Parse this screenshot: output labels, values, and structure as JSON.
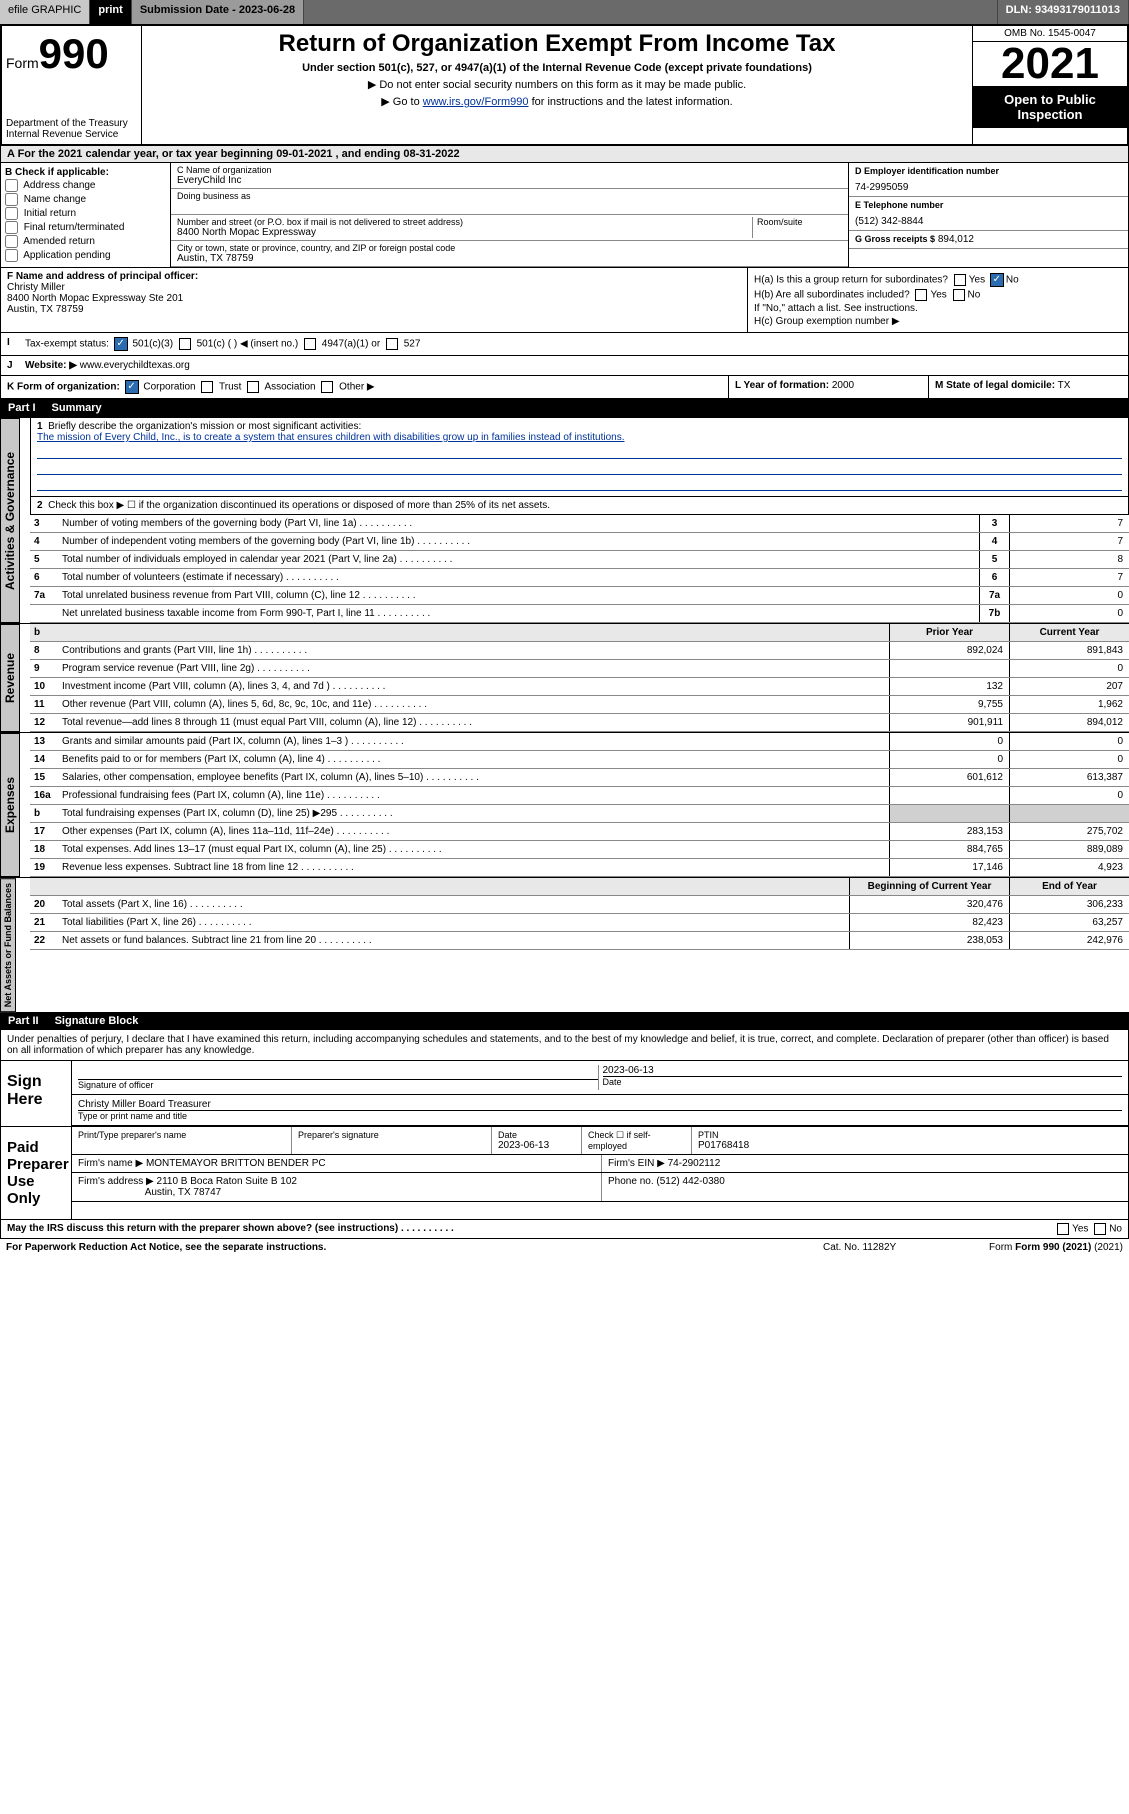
{
  "topbar": {
    "efile": "efile GRAPHIC",
    "print": "print",
    "submission": "Submission Date - 2023-06-28",
    "dln": "DLN: 93493179011013"
  },
  "header": {
    "form_prefix": "Form",
    "form_num": "990",
    "title": "Return of Organization Exempt From Income Tax",
    "subtitle": "Under section 501(c), 527, or 4947(a)(1) of the Internal Revenue Code (except private foundations)",
    "note1": "▶ Do not enter social security numbers on this form as it may be made public.",
    "goto": "▶ Go to www.irs.gov/Form990 for instructions and the latest information.",
    "goto_link": "www.irs.gov/Form990",
    "omb": "OMB No. 1545-0047",
    "year": "2021",
    "open_pub": "Open to Public Inspection",
    "dept": "Department of the Treasury",
    "irs": "Internal Revenue Service"
  },
  "section_a": "A For the 2021 calendar year, or tax year beginning 09-01-2021   , and ending 08-31-2022",
  "col_b": {
    "label": "B Check if applicable:",
    "items": [
      "Address change",
      "Name change",
      "Initial return",
      "Final return/terminated",
      "Amended return",
      "Application pending"
    ]
  },
  "col_c": {
    "name_lbl": "C Name of organization",
    "name": "EveryChild Inc",
    "dba_lbl": "Doing business as",
    "addr_lbl": "Number and street (or P.O. box if mail is not delivered to street address)",
    "addr": "8400 North Mopac Expressway",
    "room_lbl": "Room/suite",
    "city_lbl": "City or town, state or province, country, and ZIP or foreign postal code",
    "city": "Austin, TX  78759"
  },
  "col_d": {
    "ein_lbl": "D Employer identification number",
    "ein": "74-2995059",
    "tel_lbl": "E Telephone number",
    "tel": "(512) 342-8844",
    "gross_lbl": "G Gross receipts $",
    "gross": "894,012"
  },
  "row_f": {
    "lbl": "F Name and address of principal officer:",
    "name": "Christy Miller",
    "addr1": "8400 North Mopac Expressway Ste 201",
    "addr2": "Austin, TX  78759"
  },
  "row_h": {
    "ha": "H(a)  Is this a group return for subordinates?",
    "ha_no": "No",
    "hb": "H(b)  Are all subordinates included?",
    "hb_note": "If \"No,\" attach a list. See instructions.",
    "hc": "H(c)  Group exemption number ▶"
  },
  "row_i": {
    "lbl": "Tax-exempt status:",
    "opt1": "501(c)(3)",
    "opt2": "501(c) (   ) ◀ (insert no.)",
    "opt3": "4947(a)(1) or",
    "opt4": "527"
  },
  "row_j": {
    "lbl": "Website: ▶",
    "val": "www.everychildtexas.org"
  },
  "row_k": {
    "lbl": "K Form of organization:",
    "opts": [
      "Corporation",
      "Trust",
      "Association",
      "Other ▶"
    ],
    "l_lbl": "L Year of formation:",
    "l_val": "2000",
    "m_lbl": "M State of legal domicile:",
    "m_val": "TX"
  },
  "part1": {
    "hdr": "Part I",
    "title": "Summary",
    "q1": "Briefly describe the organization's mission or most significant activities:",
    "mission": "The mission of Every Child, Inc., is to create a system that ensures children with disabilities grow up in families instead of institutions.",
    "q2": "Check this box ▶ ☐  if the organization discontinued its operations or disposed of more than 25% of its net assets.",
    "lines": [
      {
        "n": "3",
        "desc": "Number of voting members of the governing body (Part VI, line 1a)",
        "box": "3",
        "val": "7"
      },
      {
        "n": "4",
        "desc": "Number of independent voting members of the governing body (Part VI, line 1b)",
        "box": "4",
        "val": "7"
      },
      {
        "n": "5",
        "desc": "Total number of individuals employed in calendar year 2021 (Part V, line 2a)",
        "box": "5",
        "val": "8"
      },
      {
        "n": "6",
        "desc": "Total number of volunteers (estimate if necessary)",
        "box": "6",
        "val": "7"
      },
      {
        "n": "7a",
        "desc": "Total unrelated business revenue from Part VIII, column (C), line 12",
        "box": "7a",
        "val": "0"
      },
      {
        "n": "",
        "desc": "Net unrelated business taxable income from Form 990-T, Part I, line 11",
        "box": "7b",
        "val": "0"
      }
    ],
    "col_hdr_prior": "Prior Year",
    "col_hdr_curr": "Current Year",
    "rev": [
      {
        "n": "8",
        "desc": "Contributions and grants (Part VIII, line 1h)",
        "prior": "892,024",
        "curr": "891,843"
      },
      {
        "n": "9",
        "desc": "Program service revenue (Part VIII, line 2g)",
        "prior": "",
        "curr": "0"
      },
      {
        "n": "10",
        "desc": "Investment income (Part VIII, column (A), lines 3, 4, and 7d )",
        "prior": "132",
        "curr": "207"
      },
      {
        "n": "11",
        "desc": "Other revenue (Part VIII, column (A), lines 5, 6d, 8c, 9c, 10c, and 11e)",
        "prior": "9,755",
        "curr": "1,962"
      },
      {
        "n": "12",
        "desc": "Total revenue—add lines 8 through 11 (must equal Part VIII, column (A), line 12)",
        "prior": "901,911",
        "curr": "894,012"
      }
    ],
    "exp": [
      {
        "n": "13",
        "desc": "Grants and similar amounts paid (Part IX, column (A), lines 1–3 )",
        "prior": "0",
        "curr": "0"
      },
      {
        "n": "14",
        "desc": "Benefits paid to or for members (Part IX, column (A), line 4)",
        "prior": "0",
        "curr": "0"
      },
      {
        "n": "15",
        "desc": "Salaries, other compensation, employee benefits (Part IX, column (A), lines 5–10)",
        "prior": "601,612",
        "curr": "613,387"
      },
      {
        "n": "16a",
        "desc": "Professional fundraising fees (Part IX, column (A), line 11e)",
        "prior": "",
        "curr": "0"
      },
      {
        "n": "b",
        "desc": "Total fundraising expenses (Part IX, column (D), line 25) ▶295",
        "prior": "",
        "curr": "",
        "grey": true
      },
      {
        "n": "17",
        "desc": "Other expenses (Part IX, column (A), lines 11a–11d, 11f–24e)",
        "prior": "283,153",
        "curr": "275,702"
      },
      {
        "n": "18",
        "desc": "Total expenses. Add lines 13–17 (must equal Part IX, column (A), line 25)",
        "prior": "884,765",
        "curr": "889,089"
      },
      {
        "n": "19",
        "desc": "Revenue less expenses. Subtract line 18 from line 12",
        "prior": "17,146",
        "curr": "4,923"
      }
    ],
    "net_hdr_begin": "Beginning of Current Year",
    "net_hdr_end": "End of Year",
    "net": [
      {
        "n": "20",
        "desc": "Total assets (Part X, line 16)",
        "prior": "320,476",
        "curr": "306,233"
      },
      {
        "n": "21",
        "desc": "Total liabilities (Part X, line 26)",
        "prior": "82,423",
        "curr": "63,257"
      },
      {
        "n": "22",
        "desc": "Net assets or fund balances. Subtract line 21 from line 20",
        "prior": "238,053",
        "curr": "242,976"
      }
    ]
  },
  "tabs": {
    "act": "Activities & Governance",
    "rev": "Revenue",
    "exp": "Expenses",
    "net": "Net Assets or Fund Balances"
  },
  "part2": {
    "hdr": "Part II",
    "title": "Signature Block",
    "decl": "Under penalties of perjury, I declare that I have examined this return, including accompanying schedules and statements, and to the best of my knowledge and belief, it is true, correct, and complete. Declaration of preparer (other than officer) is based on all information of which preparer has any knowledge.",
    "sign_lbl": "Sign Here",
    "sig_officer_lbl": "Signature of officer",
    "sig_date": "2023-06-13",
    "date_lbl": "Date",
    "name_title": "Christy Miller  Board Treasurer",
    "type_lbl": "Type or print name and title",
    "paid_lbl": "Paid Preparer Use Only",
    "prep_name_lbl": "Print/Type preparer's name",
    "prep_sig_lbl": "Preparer's signature",
    "prep_date": "2023-06-13",
    "check_lbl": "Check ☐ if self-employed",
    "ptin_lbl": "PTIN",
    "ptin": "P01768418",
    "firm_name_lbl": "Firm's name    ▶",
    "firm_name": "MONTEMAYOR BRITTON BENDER PC",
    "firm_ein_lbl": "Firm's EIN ▶",
    "firm_ein": "74-2902112",
    "firm_addr_lbl": "Firm's address ▶",
    "firm_addr1": "2110 B Boca Raton Suite B 102",
    "firm_addr2": "Austin, TX  78747",
    "phone_lbl": "Phone no.",
    "phone": "(512) 442-0380",
    "discuss": "May the IRS discuss this return with the preparer shown above? (see instructions)",
    "yes": "Yes",
    "no": "No"
  },
  "footer": {
    "paperwork": "For Paperwork Reduction Act Notice, see the separate instructions.",
    "cat": "Cat. No. 11282Y",
    "form": "Form 990 (2021)"
  }
}
